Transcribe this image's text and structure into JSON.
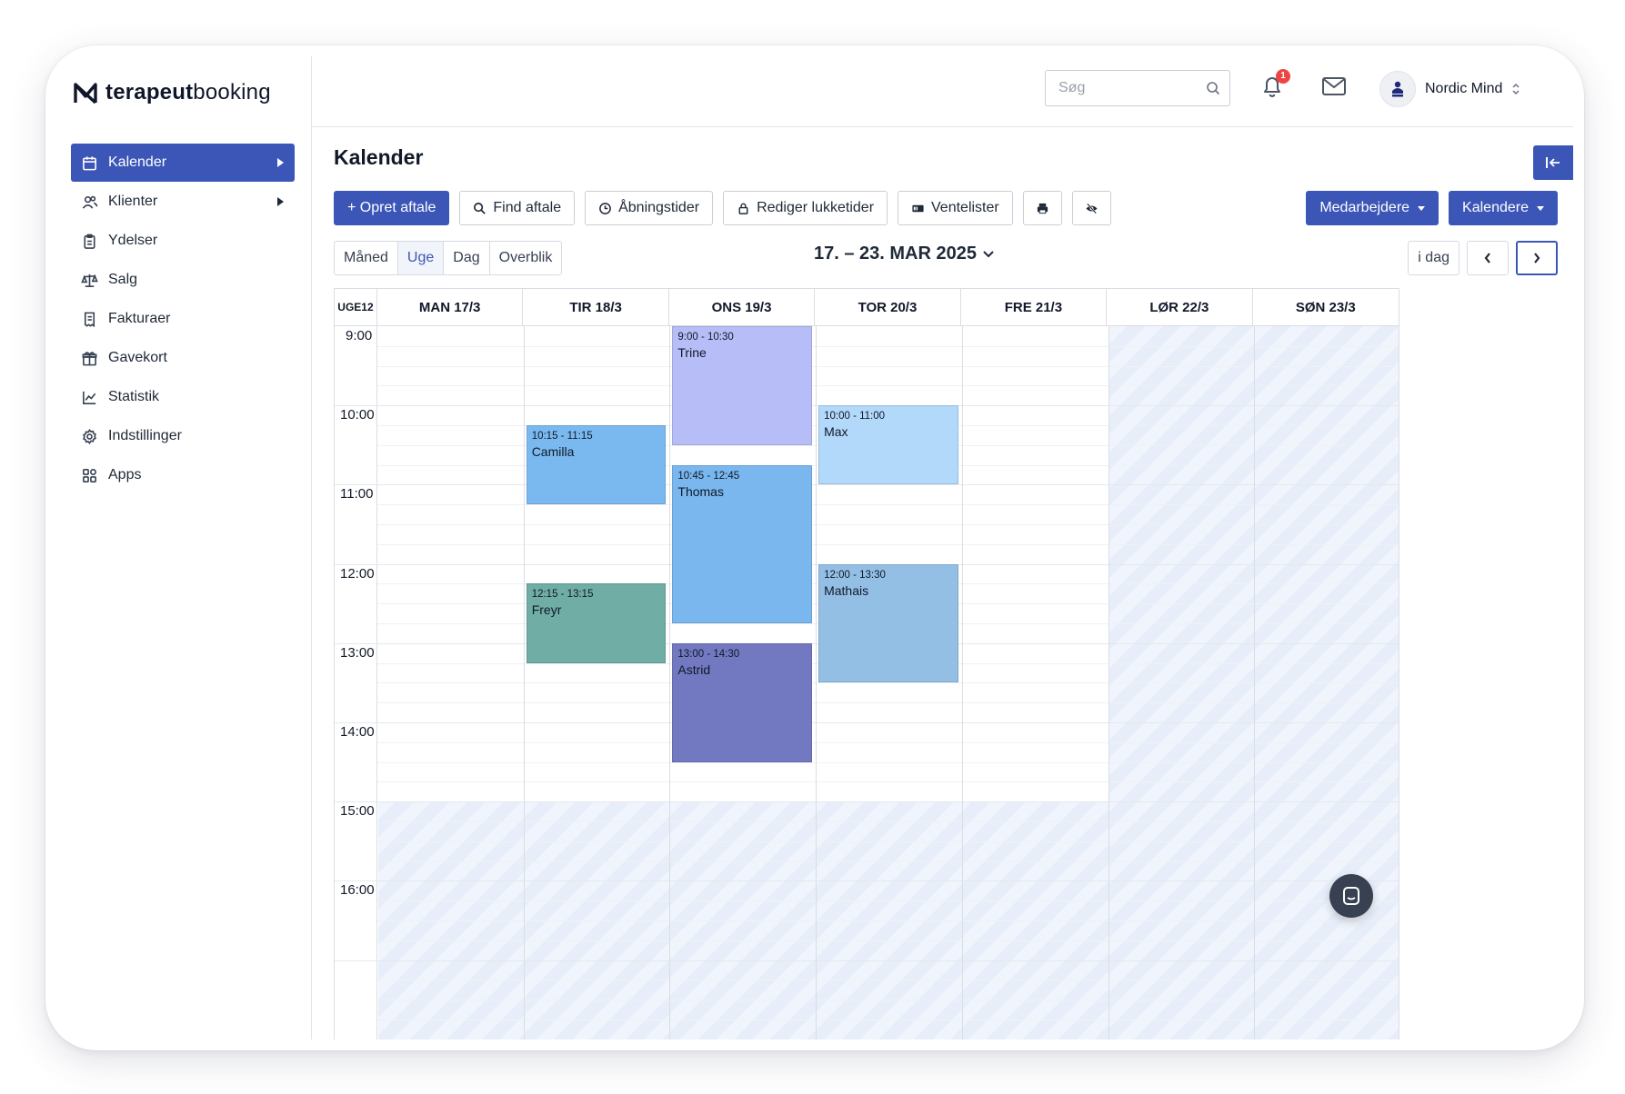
{
  "brand": {
    "name_bold": "terapeut",
    "name_light": "booking"
  },
  "sidebar": {
    "items": [
      {
        "label": "Kalender",
        "icon": "calendar-icon",
        "active": true,
        "has_arrow": true
      },
      {
        "label": "Klienter",
        "icon": "users-icon",
        "active": false,
        "has_arrow": true
      },
      {
        "label": "Ydelser",
        "icon": "clipboard-icon",
        "active": false,
        "has_arrow": false
      },
      {
        "label": "Salg",
        "icon": "scale-icon",
        "active": false,
        "has_arrow": false
      },
      {
        "label": "Fakturaer",
        "icon": "invoice-icon",
        "active": false,
        "has_arrow": false
      },
      {
        "label": "Gavekort",
        "icon": "gift-icon",
        "active": false,
        "has_arrow": false
      },
      {
        "label": "Statistik",
        "icon": "chart-icon",
        "active": false,
        "has_arrow": false
      },
      {
        "label": "Indstillinger",
        "icon": "gear-icon",
        "active": false,
        "has_arrow": false
      },
      {
        "label": "Apps",
        "icon": "apps-icon",
        "active": false,
        "has_arrow": false
      }
    ]
  },
  "topbar": {
    "search_placeholder": "Søg",
    "notification_count": "1",
    "account_name": "Nordic Mind"
  },
  "main": {
    "title": "Kalender",
    "toolbar": {
      "create": "+ Opret aftale",
      "find": "Find aftale",
      "hours": "Åbningstider",
      "closed": "Rediger lukketider",
      "waitlists": "Ventelister",
      "staff": "Medarbejdere",
      "calendars": "Kalendere"
    },
    "views": [
      "Måned",
      "Uge",
      "Dag",
      "Overblik"
    ],
    "active_view": "Uge",
    "date_range": "17. – 23. MAR 2025",
    "today": "i dag"
  },
  "calendar": {
    "week_label": "UGE12",
    "days": [
      "MAN 17/3",
      "TIR 18/3",
      "ONS 19/3",
      "TOR 20/3",
      "FRE 21/3",
      "LØR 22/3",
      "SØN 23/3"
    ],
    "hours": [
      "9:00",
      "10:00",
      "11:00",
      "12:00",
      "13:00",
      "14:00",
      "15:00",
      "16:00"
    ],
    "start_hour": 9,
    "closed_after_hour": 15,
    "closed_days": [
      5,
      6
    ],
    "events": [
      {
        "day": 2,
        "start": 9.0,
        "end": 10.5,
        "time": "9:00 - 10:30",
        "name": "Trine",
        "color": "#b7bdf6"
      },
      {
        "day": 1,
        "start": 10.25,
        "end": 11.25,
        "time": "10:15 - 11:15",
        "name": "Camilla",
        "color": "#7ab9ef"
      },
      {
        "day": 3,
        "start": 10.0,
        "end": 11.0,
        "time": "10:00 - 11:00",
        "name": "Max",
        "color": "#b2d8fa"
      },
      {
        "day": 2,
        "start": 10.75,
        "end": 12.75,
        "time": "10:45 - 12:45",
        "name": "Thomas",
        "color": "#79b7ee"
      },
      {
        "day": 1,
        "start": 12.25,
        "end": 13.25,
        "time": "12:15 - 13:15",
        "name": "Freyr",
        "color": "#70ada5"
      },
      {
        "day": 3,
        "start": 12.0,
        "end": 13.5,
        "time": "12:00 - 13:30",
        "name": "Mathais",
        "color": "#93bfe5"
      },
      {
        "day": 2,
        "start": 13.0,
        "end": 14.5,
        "time": "13:00 - 14:30",
        "name": "Astrid",
        "color": "#7279c0"
      }
    ]
  },
  "colors": {
    "accent": "#3b56b7",
    "badge": "#ef4444"
  }
}
